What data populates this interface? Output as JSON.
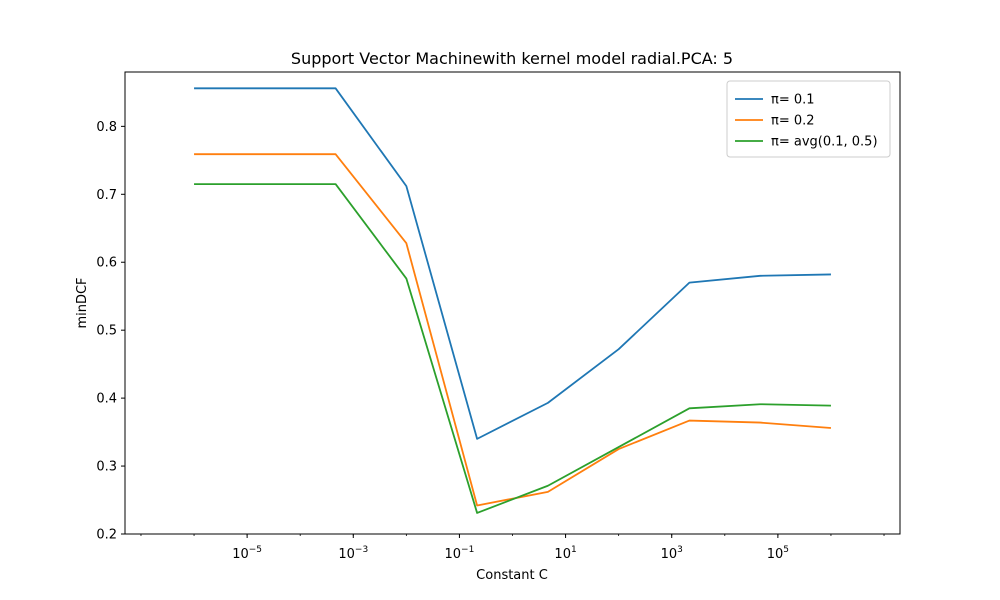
{
  "chart_data": {
    "type": "line",
    "title": "Support Vector Machinewith kernel model radial.PCA: 5",
    "xlabel": "Constant C",
    "ylabel": "minDCF",
    "x_scale": "log",
    "x": [
      1e-06,
      0.0004642,
      0.01,
      0.2154,
      4.642,
      100,
      2154,
      46416,
      1000000
    ],
    "xlim": [
      5e-08,
      20000000.0
    ],
    "ylim": [
      0.2,
      0.88
    ],
    "x_tick_values": [
      1e-05,
      0.001,
      0.1,
      10,
      1000,
      100000
    ],
    "x_ticks": [
      {
        "base": "10",
        "exp": "−5"
      },
      {
        "base": "10",
        "exp": "−3"
      },
      {
        "base": "10",
        "exp": "−1"
      },
      {
        "base": "10",
        "exp": "1"
      },
      {
        "base": "10",
        "exp": "3"
      },
      {
        "base": "10",
        "exp": "5"
      }
    ],
    "y_tick_values": [
      0.2,
      0.3,
      0.4,
      0.5,
      0.6,
      0.7,
      0.8
    ],
    "y_ticks": [
      "0.2",
      "0.3",
      "0.4",
      "0.5",
      "0.6",
      "0.7",
      "0.8"
    ],
    "grid": false,
    "legend_position": "top-right",
    "series": [
      {
        "name": "π= 0.1",
        "color": "#1f77b4",
        "values": [
          0.856,
          0.856,
          0.712,
          0.34,
          0.393,
          0.472,
          0.57,
          0.58,
          0.582
        ]
      },
      {
        "name": "π= 0.2",
        "color": "#ff7f0e",
        "values": [
          0.759,
          0.759,
          0.628,
          0.242,
          0.262,
          0.325,
          0.367,
          0.364,
          0.356
        ]
      },
      {
        "name": "π= avg(0.1, 0.5)",
        "color": "#2ca02c",
        "values": [
          0.715,
          0.715,
          0.576,
          0.231,
          0.271,
          0.328,
          0.385,
          0.391,
          0.389
        ]
      }
    ]
  }
}
